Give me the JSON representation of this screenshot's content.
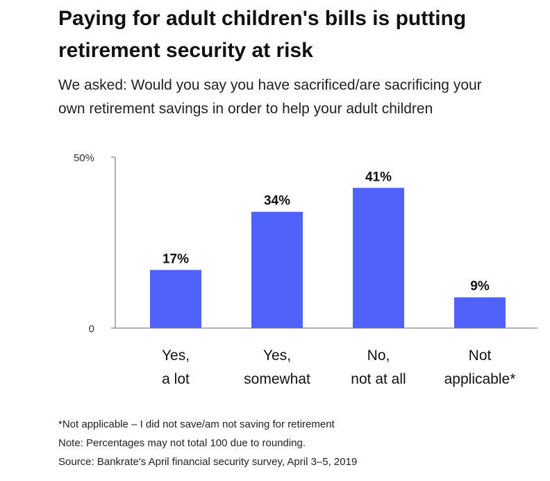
{
  "title_lines": [
    "Paying for adult children's bills is putting",
    "retirement security at risk"
  ],
  "subtitle_lines": [
    "We asked: Would you say you have sacrificed/are sacrificing your",
    "own retirement savings in order to help your adult children"
  ],
  "notes": [
    "*Not applicable –  I did not save/am not saving for retirement",
    "Note: Percentages may not total 100 due to rounding.",
    "Source: Bankrate's April financial security survey, April 3–5, 2019"
  ],
  "colors": {
    "bar": "#4f63fa",
    "axis": "#9a9a9a",
    "text": "#111111"
  },
  "chart_data": {
    "type": "bar",
    "categories": [
      [
        "Yes,",
        "a lot"
      ],
      [
        "Yes,",
        "somewhat"
      ],
      [
        "No,",
        "not at all"
      ],
      [
        "Not",
        "applicable*"
      ]
    ],
    "values": [
      17,
      34,
      41,
      9
    ],
    "data_labels": [
      "17%",
      "34%",
      "41%",
      "9%"
    ],
    "ytick_labels": [
      "0",
      "50%"
    ],
    "ylim": [
      0,
      50
    ],
    "xlabel": "",
    "ylabel": "",
    "grid": false,
    "legend": "none"
  }
}
